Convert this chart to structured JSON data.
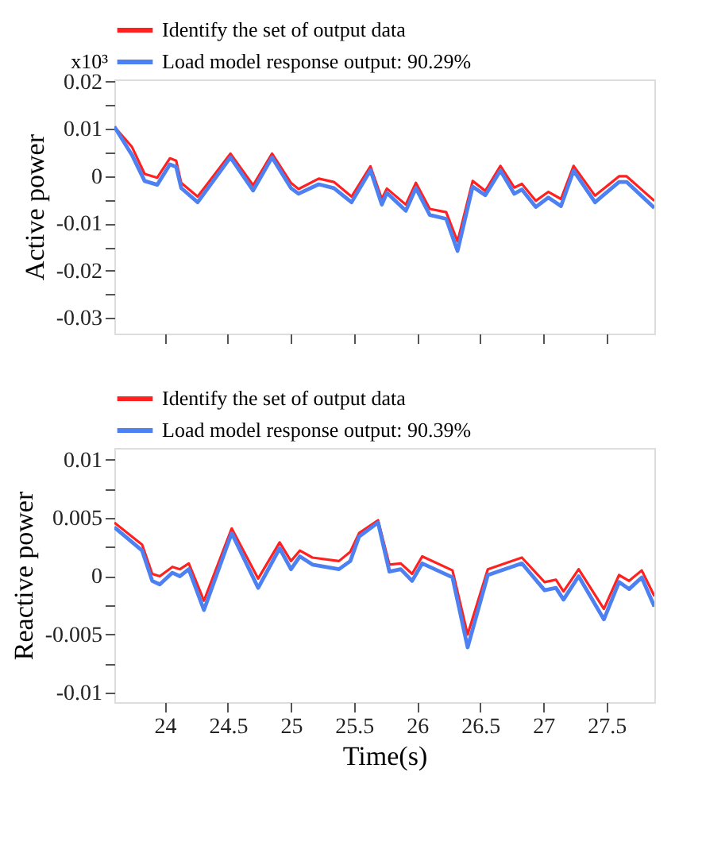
{
  "chart_data": [
    {
      "type": "line",
      "ylabel": "Active power",
      "annotations": [
        "x10³"
      ],
      "legend": "top",
      "grid": false,
      "tick_labels": "y",
      "line_style": "solid",
      "xlim": [
        23.6,
        27.88
      ],
      "ylim": [
        -0.0333,
        0.0205
      ],
      "xticks": [
        {
          "value": 24,
          "label": null
        },
        {
          "value": 24.5,
          "label": null
        },
        {
          "value": 25,
          "label": null
        },
        {
          "value": 25.5,
          "label": null
        },
        {
          "value": 26,
          "label": null
        },
        {
          "value": 26.5,
          "label": null
        },
        {
          "value": 27,
          "label": null
        },
        {
          "value": 27.5,
          "label": null
        }
      ],
      "yticks": [
        0.02,
        {
          "value": 0.015,
          "label": null
        },
        0.01,
        {
          "value": 0.005,
          "label": null
        },
        0,
        {
          "value": -0.005,
          "label": null
        },
        -0.01,
        {
          "value": -0.015,
          "label": null
        },
        -0.02,
        {
          "value": -0.025,
          "label": null
        },
        -0.03
      ],
      "x": [
        23.6,
        23.74,
        23.84,
        23.94,
        24.04,
        24.09,
        24.13,
        24.26,
        24.52,
        24.7,
        24.85,
        25.0,
        25.06,
        25.22,
        25.34,
        25.48,
        25.63,
        25.72,
        25.76,
        25.91,
        25.99,
        26.1,
        26.23,
        26.32,
        26.44,
        26.54,
        26.66,
        26.77,
        26.83,
        26.94,
        27.04,
        27.14,
        27.24,
        27.41,
        27.6,
        27.66,
        27.88
      ],
      "series": [
        {
          "name": "Identify the set of output data",
          "color": "#ff2020",
          "values": [
            0.0105,
            0.0062,
            0.0005,
            -0.0003,
            0.0038,
            0.0033,
            -0.0014,
            -0.0043,
            0.0048,
            -0.0019,
            0.0048,
            -0.0014,
            -0.0027,
            -0.0005,
            -0.0012,
            -0.0043,
            0.0021,
            -0.0048,
            -0.0026,
            -0.006,
            -0.0014,
            -0.0069,
            -0.0076,
            -0.0138,
            -0.001,
            -0.0031,
            0.0022,
            -0.0024,
            -0.0016,
            -0.0052,
            -0.0033,
            -0.0048,
            0.0022,
            -0.0041,
            0,
            0,
            -0.0052
          ]
        },
        {
          "name": "Load model response output: 90.29%",
          "color": "#4d80f0",
          "values": [
            0.0105,
            0.0045,
            -0.001,
            -0.0018,
            0.0025,
            0.002,
            -0.0025,
            -0.0055,
            0.004,
            -0.003,
            0.004,
            -0.0025,
            -0.0037,
            -0.0017,
            -0.0025,
            -0.0055,
            0.0013,
            -0.006,
            -0.0035,
            -0.0073,
            -0.0025,
            -0.0082,
            -0.009,
            -0.0158,
            -0.0022,
            -0.004,
            0.0012,
            -0.0037,
            -0.0028,
            -0.0065,
            -0.0045,
            -0.0063,
            0.0012,
            -0.0055,
            -0.0012,
            -0.0012,
            -0.0067
          ]
        }
      ]
    },
    {
      "type": "line",
      "ylabel": "Reactive power",
      "xlabel": "Time(s)",
      "legend": "top",
      "grid": false,
      "line_style": "solid",
      "xlim": [
        23.6,
        27.88
      ],
      "ylim": [
        -0.0108,
        0.011
      ],
      "xticks": [
        24,
        24.5,
        25,
        25.5,
        26,
        26.5,
        27,
        27.5
      ],
      "yticks": [
        0.01,
        {
          "value": 0.0075,
          "label": null
        },
        0.005,
        {
          "value": 0.0025,
          "label": null
        },
        0,
        {
          "value": -0.0025,
          "label": null
        },
        -0.005,
        {
          "value": -0.0075,
          "label": null
        },
        -0.01
      ],
      "x": [
        23.6,
        23.82,
        23.9,
        23.96,
        24.06,
        24.12,
        24.19,
        24.31,
        24.53,
        24.74,
        24.91,
        25.0,
        25.07,
        25.17,
        25.38,
        25.47,
        25.54,
        25.69,
        25.78,
        25.87,
        25.96,
        26.04,
        26.28,
        26.4,
        26.56,
        26.83,
        27.01,
        27.1,
        27.16,
        27.28,
        27.48,
        27.6,
        27.68,
        27.78,
        27.88
      ],
      "series": [
        {
          "name": "Identify the set of output data",
          "color": "#ff2020",
          "values": [
            0.0046,
            0.0027,
            0.0002,
            0,
            0.0008,
            0.0006,
            0.0011,
            -0.0021,
            0.0041,
            -0.0002,
            0.0029,
            0.0013,
            0.0022,
            0.0016,
            0.0013,
            0.0021,
            0.0037,
            0.0048,
            0.001,
            0.0011,
            0.0002,
            0.0017,
            0.0005,
            -0.005,
            0.0006,
            0.0016,
            -0.0005,
            -0.0003,
            -0.0013,
            0.0006,
            -0.0028,
            0.0001,
            -0.0004,
            0.0005,
            -0.0017
          ]
        },
        {
          "name": "Load model response output: 90.39%",
          "color": "#4d80f0",
          "values": [
            0.0042,
            0.0022,
            -0.0004,
            -0.0007,
            0.0003,
            0,
            0.0006,
            -0.0029,
            0.0037,
            -0.001,
            0.0024,
            0.0006,
            0.0017,
            0.001,
            0.0006,
            0.0013,
            0.0034,
            0.0046,
            0.0004,
            0.0006,
            -0.0004,
            0.0011,
            -0.0001,
            -0.0061,
            0.0001,
            0.0011,
            -0.0012,
            -0.001,
            -0.002,
            0,
            -0.0037,
            -0.0005,
            -0.0011,
            -0.0001,
            -0.0026
          ]
        }
      ]
    }
  ]
}
